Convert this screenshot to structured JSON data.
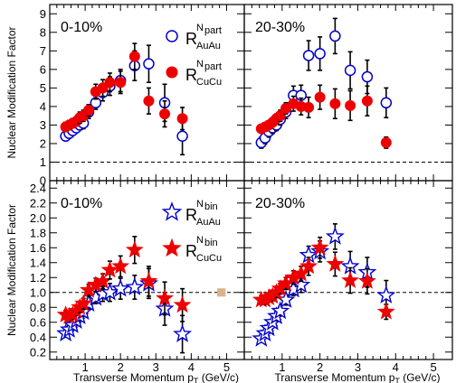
{
  "chart_data": [
    {
      "type": "scatter",
      "panel": "top-left",
      "label": "0-10%",
      "ylabel": "Nuclear Modification Factor",
      "xlim": [
        0,
        5.5
      ],
      "ylim": [
        0,
        9.5
      ],
      "yticks": [
        0,
        1,
        2,
        3,
        4,
        5,
        6,
        7,
        8,
        9
      ],
      "xticks": [
        1,
        2,
        3,
        4,
        5
      ],
      "reference_line": 1,
      "legend": [
        {
          "marker": "open-circle",
          "color": "#0000cc",
          "main": "R",
          "sup": "N",
          "sup_sub": "part",
          "sub": "AuAu"
        },
        {
          "marker": "filled-circle",
          "color": "#ee0000",
          "main": "R",
          "sup": "N",
          "sup_sub": "part",
          "sub": "CuCu"
        }
      ],
      "series": [
        {
          "marker": "open-circle",
          "color": "#0000cc",
          "points": [
            [
              0.45,
              2.4,
              0.25
            ],
            [
              0.55,
              2.55,
              0.25
            ],
            [
              0.65,
              2.7,
              0.25
            ],
            [
              0.75,
              2.85,
              0.25
            ],
            [
              0.85,
              3.0,
              0.25
            ],
            [
              0.95,
              3.1,
              0.3
            ],
            [
              1.1,
              3.7,
              0.35
            ],
            [
              1.3,
              4.2,
              0.35
            ],
            [
              1.5,
              4.75,
              0.45
            ],
            [
              1.7,
              5.1,
              0.5
            ],
            [
              2.0,
              5.4,
              0.6
            ],
            [
              2.4,
              6.2,
              0.8
            ],
            [
              2.8,
              6.3,
              1.0
            ],
            [
              3.25,
              4.2,
              1.0
            ],
            [
              3.75,
              2.4,
              1.0
            ]
          ]
        },
        {
          "marker": "filled-circle",
          "color": "#ee0000",
          "points": [
            [
              0.45,
              2.9,
              0.25
            ],
            [
              0.55,
              3.0,
              0.25
            ],
            [
              0.65,
              3.1,
              0.25
            ],
            [
              0.75,
              3.2,
              0.25
            ],
            [
              0.85,
              3.4,
              0.3
            ],
            [
              0.95,
              3.5,
              0.3
            ],
            [
              1.1,
              3.8,
              0.3
            ],
            [
              1.3,
              4.8,
              0.4
            ],
            [
              1.5,
              5.0,
              0.45
            ],
            [
              1.7,
              5.3,
              0.5
            ],
            [
              2.0,
              5.3,
              0.6
            ],
            [
              2.4,
              6.7,
              0.7
            ],
            [
              2.8,
              4.3,
              0.7
            ],
            [
              3.25,
              3.6,
              0.7
            ],
            [
              3.75,
              3.35,
              0.6
            ]
          ]
        }
      ]
    },
    {
      "type": "scatter",
      "panel": "top-right",
      "label": "20-30%",
      "xlim": [
        0,
        5.5
      ],
      "ylim": [
        0,
        9.5
      ],
      "xticks": [
        1,
        2,
        3,
        4,
        5
      ],
      "reference_line": 1,
      "series": [
        {
          "marker": "open-circle",
          "color": "#0000cc",
          "points": [
            [
              0.45,
              2.05,
              0.3
            ],
            [
              0.55,
              2.3,
              0.3
            ],
            [
              0.65,
              2.65,
              0.3
            ],
            [
              0.75,
              2.85,
              0.3
            ],
            [
              0.85,
              3.0,
              0.3
            ],
            [
              0.95,
              3.3,
              0.3
            ],
            [
              1.1,
              3.7,
              0.35
            ],
            [
              1.3,
              4.6,
              0.5
            ],
            [
              1.5,
              4.6,
              0.55
            ],
            [
              1.7,
              6.75,
              0.8
            ],
            [
              2.0,
              6.85,
              0.9
            ],
            [
              2.4,
              7.8,
              0.95
            ],
            [
              2.8,
              5.95,
              1.0
            ],
            [
              3.25,
              5.6,
              0.9
            ],
            [
              3.75,
              4.2,
              0.8
            ]
          ]
        },
        {
          "marker": "filled-circle",
          "color": "#ee0000",
          "points": [
            [
              0.45,
              2.8,
              0.2
            ],
            [
              0.55,
              2.9,
              0.2
            ],
            [
              0.65,
              3.0,
              0.2
            ],
            [
              0.75,
              3.15,
              0.25
            ],
            [
              0.85,
              3.35,
              0.25
            ],
            [
              0.95,
              3.5,
              0.3
            ],
            [
              1.1,
              3.9,
              0.3
            ],
            [
              1.3,
              4.15,
              0.4
            ],
            [
              1.5,
              4.0,
              0.45
            ],
            [
              1.7,
              3.95,
              0.55
            ],
            [
              2.0,
              4.5,
              0.65
            ],
            [
              2.4,
              4.15,
              0.8
            ],
            [
              2.8,
              4.05,
              0.8
            ],
            [
              3.25,
              4.3,
              0.8
            ],
            [
              3.75,
              2.05,
              0.3
            ]
          ]
        }
      ]
    },
    {
      "type": "scatter",
      "panel": "bottom-left",
      "label": "0-10%",
      "ylabel": "Nuclear Modification Factor",
      "xlabel_main": "Transverse Momentum p",
      "xlabel_sub": "T",
      "xlabel_unit": "(GeV/c)",
      "xlim": [
        0,
        5.5
      ],
      "ylim": [
        0.1,
        2.5
      ],
      "yticks": [
        0.2,
        0.4,
        0.6,
        0.8,
        1.0,
        1.2,
        1.4,
        1.6,
        1.8,
        2.0,
        2.2,
        2.4
      ],
      "yticklabels": [
        "0.2",
        "0.4",
        "0.6",
        "0.8",
        "1.0",
        "1.2",
        "1.4",
        "1.6",
        "1.8",
        "2.0",
        "2.2",
        "2.4"
      ],
      "xticks": [
        1,
        2,
        3,
        4,
        5
      ],
      "xticklabels": [
        "1",
        "2",
        "3",
        "4",
        "5"
      ],
      "reference_line": 1.0,
      "systematic_box": {
        "x": 4.85,
        "y": 1.0,
        "half_width": 0.12,
        "half_height": 0.055,
        "color": "#d9b48a"
      },
      "legend": [
        {
          "marker": "open-star",
          "color": "#0000cc",
          "main": "R",
          "sup": "N",
          "sup_sub": "bin",
          "sub": "AuAu"
        },
        {
          "marker": "filled-star",
          "color": "#ee0000",
          "main": "R",
          "sup": "N",
          "sup_sub": "bin",
          "sub": "CuCu"
        }
      ],
      "series": [
        {
          "marker": "open-star",
          "color": "#0000cc",
          "points": [
            [
              0.45,
              0.45,
              0.05
            ],
            [
              0.55,
              0.5,
              0.05
            ],
            [
              0.65,
              0.56,
              0.05
            ],
            [
              0.75,
              0.62,
              0.05
            ],
            [
              0.85,
              0.68,
              0.06
            ],
            [
              0.95,
              0.74,
              0.06
            ],
            [
              1.1,
              0.85,
              0.07
            ],
            [
              1.3,
              0.93,
              0.08
            ],
            [
              1.5,
              0.98,
              0.1
            ],
            [
              1.7,
              1.0,
              0.12
            ],
            [
              2.0,
              1.05,
              0.14
            ],
            [
              2.4,
              1.07,
              0.16
            ],
            [
              2.8,
              1.12,
              0.2
            ],
            [
              3.25,
              0.78,
              0.22
            ],
            [
              3.75,
              0.44,
              0.25
            ]
          ]
        },
        {
          "marker": "filled-star",
          "color": "#ee0000",
          "points": [
            [
              0.45,
              0.7,
              0.06
            ],
            [
              0.55,
              0.68,
              0.06
            ],
            [
              0.65,
              0.7,
              0.06
            ],
            [
              0.75,
              0.75,
              0.06
            ],
            [
              0.85,
              0.8,
              0.07
            ],
            [
              0.95,
              0.85,
              0.07
            ],
            [
              1.1,
              1.03,
              0.08
            ],
            [
              1.3,
              1.1,
              0.09
            ],
            [
              1.5,
              1.15,
              0.1
            ],
            [
              1.7,
              1.3,
              0.12
            ],
            [
              2.0,
              1.35,
              0.14
            ],
            [
              2.4,
              1.57,
              0.18
            ],
            [
              2.8,
              1.15,
              0.2
            ],
            [
              3.25,
              0.92,
              0.22
            ],
            [
              3.75,
              0.83,
              0.22
            ]
          ]
        }
      ]
    },
    {
      "type": "scatter",
      "panel": "bottom-right",
      "label": "20-30%",
      "xlabel_main": "Transverse Momentum p",
      "xlabel_sub": "T",
      "xlabel_unit": "(GeV/c)",
      "xlim": [
        0,
        5.5
      ],
      "ylim": [
        0.1,
        2.5
      ],
      "xticks": [
        1,
        2,
        3,
        4,
        5
      ],
      "xticklabels": [
        "1",
        "2",
        "3",
        "4",
        "5"
      ],
      "reference_line": 1.0,
      "series": [
        {
          "marker": "open-star",
          "color": "#0000cc",
          "points": [
            [
              0.45,
              0.38,
              0.05
            ],
            [
              0.55,
              0.45,
              0.05
            ],
            [
              0.65,
              0.52,
              0.05
            ],
            [
              0.75,
              0.6,
              0.05
            ],
            [
              0.85,
              0.68,
              0.06
            ],
            [
              0.95,
              0.75,
              0.06
            ],
            [
              1.1,
              0.9,
              0.07
            ],
            [
              1.3,
              1.04,
              0.08
            ],
            [
              1.5,
              1.1,
              0.1
            ],
            [
              1.7,
              1.5,
              0.12
            ],
            [
              2.0,
              1.55,
              0.14
            ],
            [
              2.4,
              1.75,
              0.17
            ],
            [
              2.8,
              1.35,
              0.2
            ],
            [
              3.25,
              1.27,
              0.2
            ],
            [
              3.75,
              0.96,
              0.2
            ]
          ]
        },
        {
          "marker": "filled-star",
          "color": "#ee0000",
          "points": [
            [
              0.45,
              0.9,
              0.06
            ],
            [
              0.55,
              0.9,
              0.06
            ],
            [
              0.65,
              0.93,
              0.06
            ],
            [
              0.75,
              0.95,
              0.06
            ],
            [
              0.85,
              1.0,
              0.07
            ],
            [
              0.95,
              1.05,
              0.07
            ],
            [
              1.1,
              1.12,
              0.08
            ],
            [
              1.3,
              1.2,
              0.09
            ],
            [
              1.5,
              1.25,
              0.1
            ],
            [
              1.7,
              1.35,
              0.12
            ],
            [
              2.0,
              1.6,
              0.14
            ],
            [
              2.4,
              1.38,
              0.16
            ],
            [
              2.8,
              1.16,
              0.17
            ],
            [
              3.25,
              1.15,
              0.17
            ],
            [
              3.75,
              0.74,
              0.1
            ]
          ]
        }
      ]
    }
  ]
}
